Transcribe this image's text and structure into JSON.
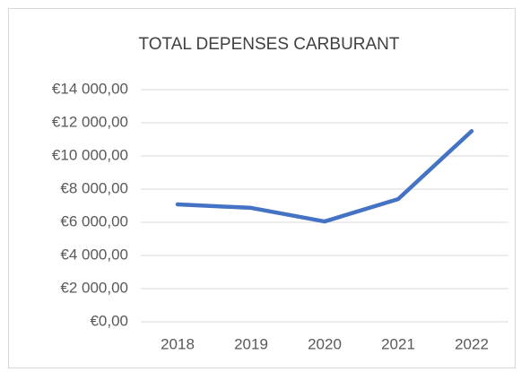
{
  "chart_data": {
    "type": "line",
    "title": "TOTAL DEPENSES CARBURANT",
    "categories": [
      "2018",
      "2019",
      "2020",
      "2021",
      "2022"
    ],
    "values": [
      7080,
      6870,
      6050,
      7400,
      11500
    ],
    "color": "#4472c4",
    "ylim": [
      0,
      14000
    ],
    "yticks": [
      {
        "value": 0,
        "label": "€0,00"
      },
      {
        "value": 2000,
        "label": "€2 000,00"
      },
      {
        "value": 4000,
        "label": "€4 000,00"
      },
      {
        "value": 6000,
        "label": "€6 000,00"
      },
      {
        "value": 8000,
        "label": "€8 000,00"
      },
      {
        "value": 10000,
        "label": "€10 000,00"
      },
      {
        "value": 12000,
        "label": "€12 000,00"
      },
      {
        "value": 14000,
        "label": "€14 000,00"
      }
    ],
    "grid": true
  }
}
